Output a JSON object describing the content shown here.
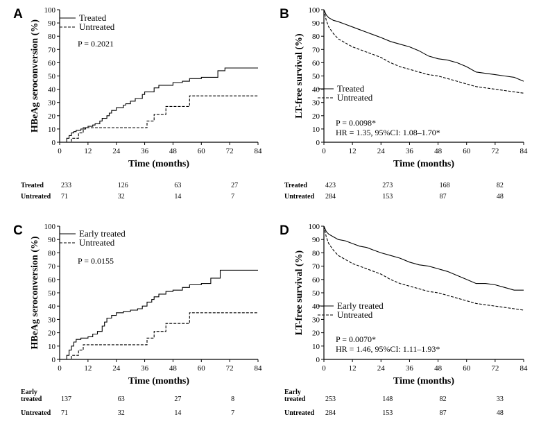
{
  "chart_data": [
    {
      "panel": "A",
      "type": "line",
      "ylabel": "HBeAg seroconversion (%)",
      "xlabel": "Time (months)",
      "xlim": [
        0,
        84
      ],
      "ylim": [
        0,
        100
      ],
      "xticks": [
        0,
        12,
        24,
        36,
        48,
        60,
        72,
        84
      ],
      "yticks": [
        0,
        10,
        20,
        30,
        40,
        50,
        60,
        70,
        80,
        90,
        100
      ],
      "legend_position": "top-left",
      "pvalue": "P = 0.2021",
      "hr_text": "",
      "series": [
        {
          "name": "Treated",
          "dash": "solid",
          "step": true,
          "x": [
            0,
            3,
            4,
            5,
            6,
            7,
            8,
            9,
            11,
            12,
            14,
            15,
            17,
            18,
            20,
            21,
            22,
            24,
            27,
            28,
            30,
            32,
            35,
            36,
            40,
            42,
            48,
            52,
            55,
            60,
            67,
            70,
            84
          ],
          "y": [
            0,
            3,
            5,
            7,
            8,
            9,
            9,
            10,
            11,
            12,
            13,
            14,
            16,
            18,
            20,
            22,
            24,
            26,
            28,
            29,
            31,
            33,
            36,
            38,
            41,
            43,
            45,
            46,
            48,
            49,
            54,
            56,
            56
          ]
        },
        {
          "name": "Untreated",
          "dash": "dashed",
          "step": true,
          "x": [
            0,
            4,
            5,
            8,
            10,
            37,
            40,
            45,
            55,
            84
          ],
          "y": [
            0,
            0,
            3,
            7,
            11,
            16,
            21,
            27,
            35,
            35
          ]
        }
      ],
      "risk_table": {
        "rows": [
          {
            "label_lines": [
              "Treated"
            ],
            "values": [
              "233",
              "126",
              "63",
              "27"
            ]
          },
          {
            "label_lines": [
              "Untreated"
            ],
            "values": [
              "71",
              "32",
              "14",
              "7"
            ]
          }
        ]
      }
    },
    {
      "panel": "B",
      "type": "line",
      "ylabel": "LT-free survival (%)",
      "xlabel": "Time (months)",
      "xlim": [
        0,
        84
      ],
      "ylim": [
        0,
        100
      ],
      "xticks": [
        0,
        12,
        24,
        36,
        48,
        60,
        72,
        84
      ],
      "yticks": [
        0,
        10,
        20,
        30,
        40,
        50,
        60,
        70,
        80,
        90,
        100
      ],
      "legend_position": "center-left",
      "pvalue": "P = 0.0098*",
      "hr_text": "HR = 1.35,  95%CI: 1.08–1.70*",
      "series": [
        {
          "name": "Treated",
          "dash": "solid",
          "step": false,
          "x": [
            0,
            1,
            2,
            4,
            6,
            9,
            12,
            15,
            18,
            21,
            24,
            28,
            32,
            36,
            40,
            44,
            48,
            52,
            56,
            60,
            64,
            68,
            72,
            76,
            80,
            84
          ],
          "y": [
            100,
            96,
            94,
            92,
            91,
            89,
            87,
            85,
            83,
            81,
            79,
            76,
            74,
            72,
            69,
            65,
            63,
            62,
            60,
            57,
            53,
            52,
            51,
            50,
            49,
            46
          ]
        },
        {
          "name": "Untreated",
          "dash": "dashed",
          "step": false,
          "x": [
            0,
            1,
            2,
            4,
            6,
            9,
            12,
            15,
            18,
            21,
            24,
            28,
            32,
            36,
            40,
            44,
            48,
            52,
            56,
            60,
            64,
            68,
            72,
            76,
            80,
            84
          ],
          "y": [
            100,
            92,
            87,
            82,
            78,
            75,
            72,
            70,
            68,
            66,
            64,
            60,
            57,
            55,
            53,
            51,
            50,
            48,
            46,
            44,
            42,
            41,
            40,
            39,
            38,
            37
          ]
        }
      ],
      "risk_table": {
        "rows": [
          {
            "label_lines": [
              "Treated"
            ],
            "values": [
              "423",
              "273",
              "168",
              "82"
            ]
          },
          {
            "label_lines": [
              "Untreated"
            ],
            "values": [
              "284",
              "153",
              "87",
              "48"
            ]
          }
        ]
      }
    },
    {
      "panel": "C",
      "type": "line",
      "ylabel": "HBeAg seroconversion (%)",
      "xlabel": "Time (months)",
      "xlim": [
        0,
        84
      ],
      "ylim": [
        0,
        100
      ],
      "xticks": [
        0,
        12,
        24,
        36,
        48,
        60,
        72,
        84
      ],
      "yticks": [
        0,
        10,
        20,
        30,
        40,
        50,
        60,
        70,
        80,
        90,
        100
      ],
      "legend_position": "top-left",
      "pvalue": "P = 0.0155",
      "hr_text": "",
      "series": [
        {
          "name": "Early treated",
          "dash": "solid",
          "step": true,
          "x": [
            0,
            3,
            4,
            5,
            6,
            7,
            9,
            12,
            14,
            16,
            18,
            19,
            20,
            22,
            24,
            27,
            30,
            33,
            35,
            37,
            39,
            40,
            42,
            45,
            48,
            52,
            55,
            60,
            64,
            68,
            84
          ],
          "y": [
            0,
            3,
            7,
            10,
            13,
            15,
            16,
            17,
            19,
            21,
            25,
            28,
            31,
            33,
            35,
            36,
            37,
            38,
            40,
            43,
            45,
            47,
            49,
            51,
            52,
            54,
            56,
            57,
            61,
            67,
            67
          ]
        },
        {
          "name": "Untreated",
          "dash": "dashed",
          "step": true,
          "x": [
            0,
            4,
            5,
            8,
            10,
            37,
            40,
            45,
            55,
            84
          ],
          "y": [
            0,
            0,
            3,
            7,
            11,
            16,
            21,
            27,
            35,
            35
          ]
        }
      ],
      "risk_table": {
        "rows": [
          {
            "label_lines": [
              "Early",
              "treated"
            ],
            "values": [
              "137",
              "63",
              "27",
              "8"
            ]
          },
          {
            "label_lines": [
              "Untreated"
            ],
            "values": [
              "71",
              "32",
              "14",
              "7"
            ]
          }
        ]
      }
    },
    {
      "panel": "D",
      "type": "line",
      "ylabel": "LT-free survival (%)",
      "xlabel": "Time (months)",
      "xlim": [
        0,
        84
      ],
      "ylim": [
        0,
        100
      ],
      "xticks": [
        0,
        12,
        24,
        36,
        48,
        60,
        72,
        84
      ],
      "yticks": [
        0,
        10,
        20,
        30,
        40,
        50,
        60,
        70,
        80,
        90,
        100
      ],
      "legend_position": "center-left",
      "pvalue": "P = 0.0070*",
      "hr_text": "HR = 1.46,  95%CI: 1.11–1.93*",
      "series": [
        {
          "name": "Early treated",
          "dash": "solid",
          "step": false,
          "x": [
            0,
            1,
            2,
            4,
            6,
            9,
            12,
            15,
            18,
            21,
            24,
            28,
            32,
            36,
            40,
            44,
            48,
            52,
            56,
            60,
            64,
            68,
            72,
            76,
            80,
            84
          ],
          "y": [
            100,
            96,
            94,
            92,
            90,
            89,
            87,
            85,
            84,
            82,
            80,
            78,
            76,
            73,
            71,
            70,
            68,
            66,
            63,
            60,
            57,
            57,
            56,
            54,
            52,
            52
          ]
        },
        {
          "name": "Untreated",
          "dash": "dashed",
          "step": false,
          "x": [
            0,
            1,
            2,
            4,
            6,
            9,
            12,
            15,
            18,
            21,
            24,
            28,
            32,
            36,
            40,
            44,
            48,
            52,
            56,
            60,
            64,
            68,
            72,
            76,
            80,
            84
          ],
          "y": [
            100,
            92,
            87,
            82,
            78,
            75,
            72,
            70,
            68,
            66,
            64,
            60,
            57,
            55,
            53,
            51,
            50,
            48,
            46,
            44,
            42,
            41,
            40,
            39,
            38,
            37
          ]
        }
      ],
      "risk_table": {
        "rows": [
          {
            "label_lines": [
              "Early",
              "treated"
            ],
            "values": [
              "253",
              "148",
              "82",
              "33"
            ]
          },
          {
            "label_lines": [
              "Untreated"
            ],
            "values": [
              "284",
              "153",
              "87",
              "48"
            ]
          }
        ]
      }
    }
  ]
}
